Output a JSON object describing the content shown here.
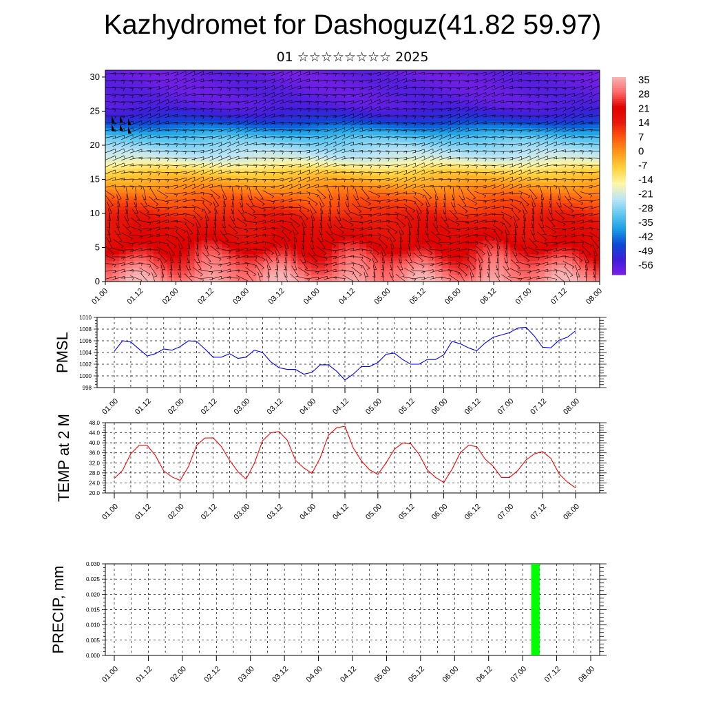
{
  "title": "Kazhydromet for Dashoguz(41.82 59.97)",
  "subtitle": "01 ☆☆☆☆☆☆☆☆ 2025",
  "colors": {
    "pmsl_line": "#0000ff",
    "temp_line": "#ff0000",
    "precip_bar": "#00ff00",
    "colorbar": [
      "#7a1fe8",
      "#3d1fd9",
      "#0b4bd3",
      "#1a9fe6",
      "#63c8f0",
      "#bfe6f5",
      "#fff6a6",
      "#ffd23d",
      "#ff9a1a",
      "#ff5a0f",
      "#e8180b",
      "#e00000",
      "#ff6a6a",
      "#f6b4b4"
    ]
  },
  "time_ticks": [
    "01.00",
    "01.12",
    "02.00",
    "02.12",
    "03.00",
    "03.12",
    "04.00",
    "04.12",
    "05.00",
    "05.12",
    "06.00",
    "06.12",
    "07.00",
    "07.12",
    "08.00"
  ],
  "chart_data": [
    {
      "type": "heatmap",
      "name": "cross-section",
      "x_ticks": [
        "01.00",
        "01.12",
        "02.00",
        "02.12",
        "03.00",
        "03.12",
        "04.00",
        "04.12",
        "05.00",
        "05.12",
        "06.00",
        "06.12",
        "07.00",
        "07.12",
        "08.00"
      ],
      "y_ticks": [
        0,
        5,
        10,
        15,
        20,
        25,
        30
      ],
      "ylim": [
        0,
        31
      ],
      "colorbar_labels": [
        "35",
        "28",
        "21",
        "14",
        "7",
        "0",
        "-7",
        "-14",
        "-21",
        "-28",
        "-35",
        "-42",
        "-49",
        "-56"
      ],
      "surface_maxima_x": [
        0.5,
        1.5,
        2.5,
        3.5,
        4.5,
        5.5,
        6.5
      ],
      "temp_levels": [
        {
          "height": 0,
          "value": 30
        },
        {
          "height": 5,
          "value": 20
        },
        {
          "height": 9,
          "value": 15
        },
        {
          "height": 12,
          "value": 8
        },
        {
          "height": 16,
          "value": -7
        },
        {
          "height": 18,
          "value": -20
        },
        {
          "height": 21,
          "value": -30
        },
        {
          "height": 24,
          "value": -50
        },
        {
          "height": 26,
          "value": -56
        },
        {
          "height": 31,
          "value": -58
        }
      ]
    },
    {
      "type": "line",
      "name": "PMSL",
      "ylabel": "PMSL",
      "ylim": [
        998,
        1010
      ],
      "y_ticks": [
        "998",
        "1000",
        "1002",
        "1004",
        "1006",
        "1008",
        "1010"
      ],
      "x_ticks": [
        "01.00",
        "01.12",
        "02.00",
        "02.12",
        "03.00",
        "03.12",
        "04.00",
        "04.12",
        "05.00",
        "05.12",
        "06.00",
        "06.12",
        "07.00",
        "07.12",
        "08.00"
      ],
      "x_step_hours": 3,
      "values": [
        1004.2,
        1006.0,
        1005.8,
        1004.6,
        1003.4,
        1003.8,
        1004.6,
        1004.4,
        1005.0,
        1006.0,
        1005.9,
        1004.6,
        1003.2,
        1003.2,
        1003.8,
        1003.0,
        1003.2,
        1004.4,
        1004.0,
        1002.4,
        1001.4,
        1001.1,
        1001.1,
        1000.3,
        1000.6,
        1001.9,
        1001.9,
        1000.8,
        999.3,
        1000.3,
        1001.6,
        1001.6,
        1002.3,
        1003.7,
        1003.9,
        1002.8,
        1002.0,
        1002.0,
        1002.8,
        1002.8,
        1003.6,
        1005.9,
        1005.5,
        1004.8,
        1004.3,
        1005.6,
        1006.6,
        1007.0,
        1007.4,
        1008.2,
        1008.3,
        1006.8,
        1004.9,
        1004.8,
        1006.1,
        1006.6,
        1007.7
      ]
    },
    {
      "type": "line",
      "name": "TEMP at 2 M",
      "ylabel": "TEMP at 2 M",
      "ylim": [
        20,
        48
      ],
      "y_ticks": [
        "20.0",
        "24.0",
        "28.0",
        "32.0",
        "36.0",
        "40.0",
        "44.0",
        "48.0"
      ],
      "x_ticks": [
        "01.00",
        "01.12",
        "02.00",
        "02.12",
        "03.00",
        "03.12",
        "04.00",
        "04.12",
        "05.00",
        "05.12",
        "06.00",
        "06.12",
        "07.00",
        "07.12",
        "08.00"
      ],
      "x_step_hours": 3,
      "values": [
        25.8,
        29.0,
        35.6,
        38.9,
        38.9,
        34.9,
        28.8,
        26.4,
        25.0,
        30.5,
        39.0,
        41.9,
        42.0,
        38.5,
        33.0,
        28.5,
        25.5,
        31.8,
        40.8,
        44.0,
        44.5,
        41.0,
        33.0,
        30.0,
        27.8,
        34.0,
        43.0,
        46.0,
        46.6,
        38.0,
        32.8,
        29.2,
        27.4,
        32.0,
        37.4,
        39.9,
        39.6,
        35.4,
        29.2,
        26.2,
        24.2,
        29.4,
        36.0,
        39.0,
        38.5,
        33.6,
        30.6,
        26.2,
        26.2,
        29.0,
        33.2,
        35.6,
        36.5,
        33.8,
        27.6,
        24.4,
        22.0
      ]
    },
    {
      "type": "bar",
      "name": "PRECIP",
      "ylabel": "PRECIP, mm",
      "ylim": [
        0,
        0.03
      ],
      "y_ticks": [
        "0.000",
        "0.005",
        "0.010",
        "0.015",
        "0.020",
        "0.025",
        "0.030"
      ],
      "x_ticks": [
        "01.00",
        "01.12",
        "02.00",
        "02.12",
        "03.00",
        "03.12",
        "04.00",
        "04.12",
        "05.00",
        "05.12",
        "06.00",
        "06.12",
        "07.00",
        "07.12",
        "08.00"
      ],
      "bars": [
        {
          "x_hours": 147,
          "width_hours": 3,
          "value": 0.03
        }
      ]
    }
  ]
}
